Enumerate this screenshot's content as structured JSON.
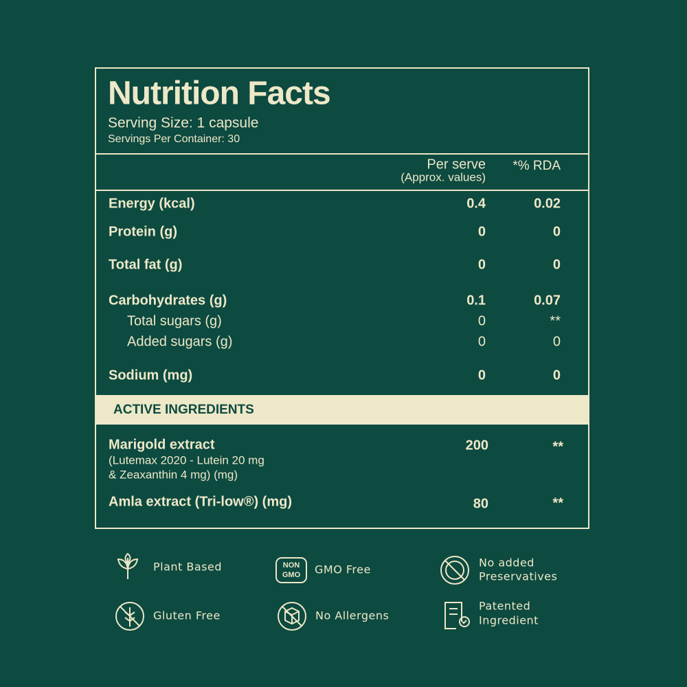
{
  "header": {
    "title": "Nutrition Facts",
    "serving_size": "Serving Size: 1 capsule",
    "servings_per_container": "Servings Per Container: 30"
  },
  "table": {
    "columns": {
      "per_serve": "Per serve",
      "per_serve_note": "(Approx. values)",
      "rda": "*% RDA"
    },
    "rows": [
      [
        "Energy (kcal)",
        "0.4",
        "0.02"
      ],
      [
        "Protein (g)",
        "0",
        "0"
      ],
      [
        "Total fat (g)",
        "0",
        "0"
      ],
      [
        "Carbohydrates (g)",
        "0.1",
        "0.07"
      ],
      [
        "Total sugars (g)",
        "0",
        "**"
      ],
      [
        "Added sugars (g)",
        "0",
        "0"
      ],
      [
        "Sodium (mg)",
        "0",
        "0"
      ]
    ]
  },
  "active_ingredients": {
    "heading": "ACTIVE INGREDIENTS",
    "rows": [
      {
        "name": "Marigold extract",
        "description": [
          "(Lutemax 2020 - Lutein 20 mg",
          "& Zeaxanthin 4 mg) (mg)"
        ],
        "per_serve": "200",
        "rda": "**"
      },
      {
        "name": "Amla extract (Tri-low®) (mg)",
        "per_serve": "80",
        "rda": "**"
      }
    ]
  },
  "badges": [
    {
      "label": [
        "Plant Based"
      ]
    },
    {
      "label": [
        "GMO Free"
      ],
      "icon_text": [
        "NON",
        "GMO"
      ]
    },
    {
      "label": [
        "No added",
        "Preservatives"
      ]
    },
    {
      "label": [
        "Gluten Free"
      ]
    },
    {
      "label": [
        "No Allergens"
      ]
    },
    {
      "label": [
        "Patented",
        "Ingredient"
      ]
    }
  ]
}
